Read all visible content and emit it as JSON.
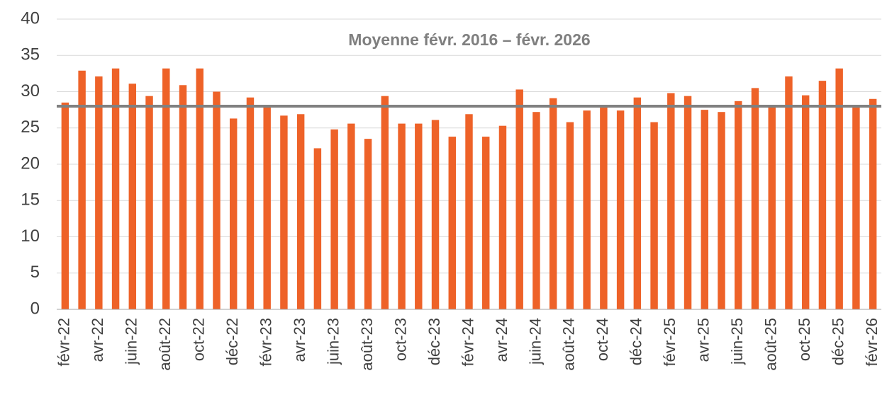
{
  "chart_data": {
    "type": "bar",
    "annotation": "Moyenne févr. 2016 – févr. 2026",
    "average": 28.0,
    "average_color": "#808080",
    "categories": [
      "févr-22",
      null,
      "avr-22",
      null,
      "juin-22",
      null,
      "août-22",
      null,
      "oct-22",
      null,
      "déc-22",
      null,
      "févr-23",
      null,
      "avr-23",
      null,
      "juin-23",
      null,
      "août-23",
      null,
      "oct-23",
      null,
      "déc-23",
      null,
      "févr-24",
      null,
      "avr-24",
      null,
      "juin-24",
      null,
      "août-24",
      null,
      "oct-24",
      null,
      "déc-24",
      null,
      "févr-25",
      null,
      "avr-25",
      null,
      "juin-25",
      null,
      "août-25",
      null,
      "oct-25",
      null,
      "déc-25",
      null,
      "févr-26"
    ],
    "values": [
      28.5,
      32.9,
      32.1,
      33.2,
      31.1,
      29.4,
      33.2,
      30.9,
      33.2,
      30.0,
      26.3,
      29.2,
      27.9,
      26.7,
      26.9,
      22.2,
      24.8,
      25.6,
      23.5,
      29.4,
      25.6,
      25.6,
      26.1,
      23.8,
      26.9,
      23.8,
      25.3,
      30.3,
      27.2,
      29.1,
      25.8,
      27.4,
      27.8,
      27.4,
      29.2,
      25.8,
      29.8,
      29.4,
      27.5,
      27.2,
      28.7,
      30.5,
      27.9,
      32.1,
      29.5,
      31.5,
      33.2,
      27.8,
      29.0
    ],
    "color": "#ee6228",
    "ylim": [
      0,
      40
    ],
    "yticks": [
      0,
      5,
      10,
      15,
      20,
      25,
      30,
      35,
      40
    ],
    "grid": true
  }
}
